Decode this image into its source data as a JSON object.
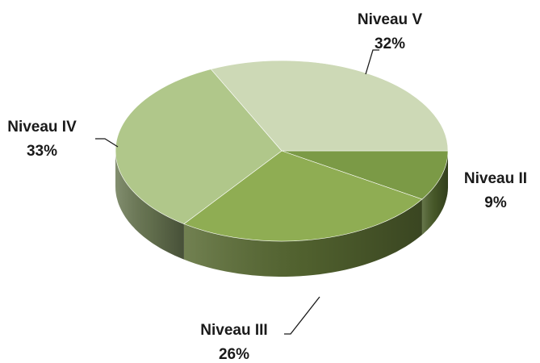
{
  "chart_data": {
    "type": "pie",
    "categories": [
      "Niveau II",
      "Niveau III",
      "Niveau IV",
      "Niveau V"
    ],
    "values": [
      9,
      26,
      33,
      32
    ],
    "value_labels": [
      "9%",
      "26%",
      "33%",
      "32%"
    ],
    "colors": [
      "#7b9a46",
      "#8fad53",
      "#b0c78a",
      "#cdd9b6"
    ]
  }
}
